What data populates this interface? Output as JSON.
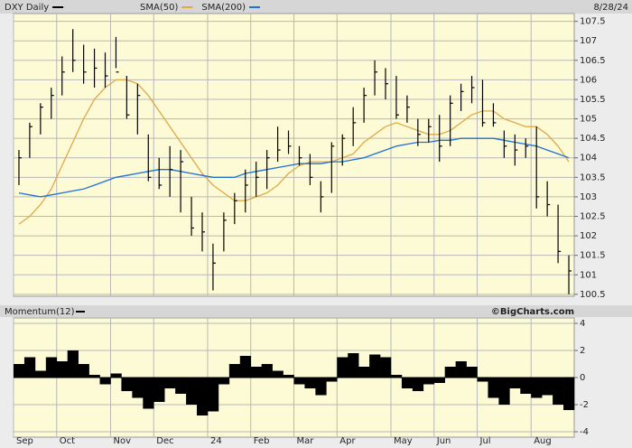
{
  "chart_data": [
    {
      "type": "ohlc",
      "title": "DXY Daily",
      "annotation": "8/28/24",
      "ylim": [
        100.45,
        107.7
      ],
      "yticks": [
        100.5,
        101.0,
        101.5,
        102.0,
        102.5,
        103.0,
        103.5,
        104.0,
        104.5,
        105.0,
        105.5,
        106.0,
        106.5,
        107.0,
        107.5
      ],
      "grid": true,
      "series": [
        {
          "name": "DXY Daily",
          "color": "#000000",
          "high": [
            104.2,
            104.9,
            105.4,
            105.8,
            106.6,
            107.3,
            106.9,
            106.8,
            106.7,
            107.1,
            106.1,
            105.9,
            104.6,
            104.0,
            104.3,
            104.2,
            103.0,
            102.6,
            101.8,
            102.6,
            103.1,
            103.7,
            103.9,
            104.2,
            104.8,
            104.7,
            104.3,
            104.1,
            103.4,
            104.4,
            104.6,
            105.3,
            105.8,
            106.5,
            106.3,
            106.1,
            105.6,
            105.0,
            105.0,
            105.1,
            105.6,
            105.9,
            106.1,
            106.0,
            105.4,
            104.7,
            104.6,
            104.5,
            104.8,
            103.4,
            102.8,
            101.5
          ],
          "low": [
            103.3,
            104.0,
            104.6,
            105.0,
            105.6,
            106.2,
            105.9,
            105.8,
            105.8,
            106.3,
            105.0,
            104.6,
            103.4,
            103.2,
            103.0,
            102.6,
            102.0,
            101.6,
            100.6,
            101.6,
            102.3,
            102.6,
            103.0,
            103.2,
            103.9,
            104.1,
            103.8,
            103.3,
            102.6,
            103.1,
            103.8,
            104.3,
            104.9,
            105.6,
            105.5,
            105.0,
            104.9,
            104.3,
            104.4,
            103.9,
            104.3,
            105.2,
            105.4,
            104.8,
            104.8,
            104.0,
            103.8,
            104.0,
            102.7,
            102.5,
            101.3,
            100.5
          ],
          "close": [
            104.0,
            104.8,
            105.3,
            105.6,
            106.2,
            106.5,
            106.2,
            106.3,
            106.1,
            106.2,
            105.1,
            105.6,
            103.5,
            103.3,
            103.7,
            103.9,
            102.2,
            102.1,
            101.3,
            102.4,
            102.9,
            103.3,
            103.5,
            104.0,
            104.2,
            104.3,
            104.0,
            103.5,
            103.0,
            104.3,
            104.5,
            104.9,
            105.6,
            106.2,
            105.9,
            105.1,
            105.3,
            104.6,
            104.8,
            104.3,
            105.4,
            105.7,
            105.8,
            104.9,
            104.9,
            104.3,
            104.2,
            104.3,
            103.0,
            102.8,
            101.6,
            101.1
          ]
        },
        {
          "name": "SMA(50)",
          "color": "#e0a848",
          "values": [
            102.3,
            102.5,
            102.8,
            103.2,
            103.8,
            104.4,
            105.0,
            105.5,
            105.8,
            106.0,
            106.0,
            105.9,
            105.6,
            105.2,
            104.8,
            104.4,
            104.0,
            103.6,
            103.3,
            103.1,
            102.9,
            102.9,
            103.0,
            103.1,
            103.3,
            103.6,
            103.8,
            103.9,
            103.9,
            103.9,
            104.0,
            104.1,
            104.4,
            104.6,
            104.8,
            104.9,
            104.8,
            104.7,
            104.6,
            104.6,
            104.7,
            104.9,
            105.1,
            105.2,
            105.2,
            105.0,
            104.9,
            104.8,
            104.8,
            104.6,
            104.3,
            103.9
          ]
        },
        {
          "name": "SMA(200)",
          "color": "#1f6fd6",
          "values": [
            103.1,
            103.05,
            103.0,
            103.05,
            103.1,
            103.15,
            103.2,
            103.3,
            103.4,
            103.5,
            103.55,
            103.6,
            103.65,
            103.7,
            103.7,
            103.65,
            103.6,
            103.55,
            103.5,
            103.5,
            103.5,
            103.6,
            103.65,
            103.7,
            103.75,
            103.8,
            103.85,
            103.85,
            103.85,
            103.9,
            103.9,
            103.95,
            104.0,
            104.1,
            104.2,
            104.3,
            104.35,
            104.4,
            104.4,
            104.45,
            104.45,
            104.5,
            104.5,
            104.5,
            104.5,
            104.45,
            104.4,
            104.35,
            104.3,
            104.2,
            104.1,
            104.0
          ]
        }
      ]
    },
    {
      "type": "bar",
      "title": "Momentum(12)",
      "annotation": "©BigCharts.com",
      "color": "#000000",
      "ylim": [
        -4.4,
        4.4
      ],
      "yticks": [
        -4,
        -2,
        0,
        2,
        4
      ],
      "grid": true,
      "categories": [
        "Sep",
        null,
        null,
        null,
        "Oct",
        null,
        null,
        null,
        null,
        "Nov",
        null,
        null,
        null,
        "Dec",
        null,
        null,
        null,
        null,
        "24",
        null,
        null,
        null,
        "Feb",
        null,
        null,
        null,
        "Mar",
        null,
        null,
        null,
        "Apr",
        null,
        null,
        null,
        null,
        "May",
        null,
        null,
        null,
        "Jun",
        null,
        null,
        null,
        "Jul",
        null,
        null,
        null,
        null,
        "Aug",
        null,
        null,
        null
      ],
      "values": [
        1.0,
        1.5,
        0.5,
        1.5,
        1.2,
        2.0,
        1.0,
        0.2,
        -0.5,
        0.3,
        -1.0,
        -1.5,
        -2.3,
        -1.8,
        -0.8,
        -1.2,
        -2.0,
        -2.8,
        -2.5,
        -0.5,
        1.0,
        1.6,
        0.8,
        1.0,
        0.5,
        0.2,
        -0.5,
        -0.8,
        -1.3,
        -0.3,
        1.5,
        1.8,
        0.8,
        1.7,
        1.5,
        0.2,
        -0.8,
        -1.0,
        -0.5,
        -0.4,
        0.8,
        1.2,
        0.8,
        -0.3,
        -1.5,
        -2.0,
        -0.8,
        -1.2,
        -1.5,
        -1.3,
        -2.0,
        -2.4
      ]
    }
  ]
}
